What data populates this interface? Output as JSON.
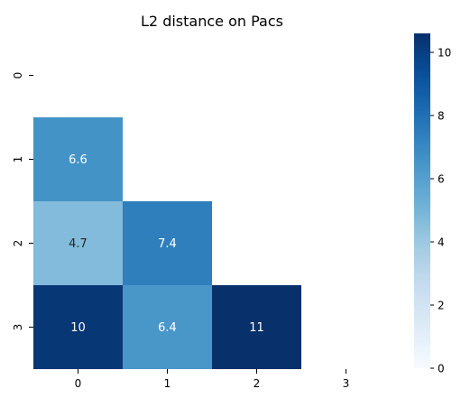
{
  "chart_data": {
    "type": "heatmap",
    "title": "L2 distance on Pacs",
    "xlabel": "",
    "ylabel": "",
    "x_categories": [
      "0",
      "1",
      "2",
      "3"
    ],
    "y_categories": [
      "0",
      "1",
      "2",
      "3"
    ],
    "mask": "upper-triangle-including-diagonal",
    "cells": [
      {
        "row": 1,
        "col": 0,
        "value": 6.6,
        "label": "6.6"
      },
      {
        "row": 2,
        "col": 0,
        "value": 4.7,
        "label": "4.7"
      },
      {
        "row": 2,
        "col": 1,
        "value": 7.4,
        "label": "7.4"
      },
      {
        "row": 3,
        "col": 0,
        "value": 10.3,
        "label": "10"
      },
      {
        "row": 3,
        "col": 1,
        "value": 6.4,
        "label": "6.4"
      },
      {
        "row": 3,
        "col": 2,
        "value": 10.6,
        "label": "11"
      }
    ],
    "colorbar": {
      "colormap": "Blues",
      "min": 0,
      "max": 10.6,
      "ticks": [
        "0",
        "2",
        "4",
        "6",
        "8",
        "10"
      ]
    }
  }
}
